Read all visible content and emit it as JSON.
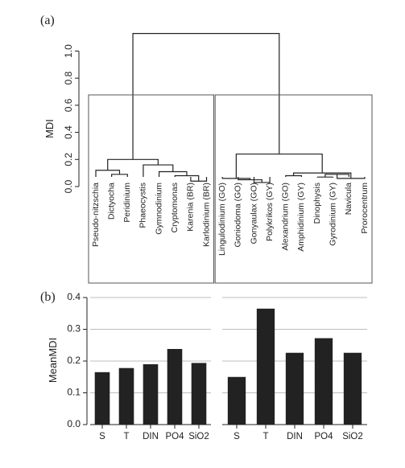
{
  "colors": {
    "ink": "#222222",
    "bar": "#222222",
    "grid": "#bdbdbd",
    "frame": "#555555",
    "background": "#ffffff"
  },
  "panel_a": {
    "label": "(a)",
    "ylabel": "MDI"
  },
  "panel_b": {
    "label": "(b)",
    "ylabel": "MeanMDI"
  },
  "chart_data": [
    {
      "type": "dendrogram",
      "panel": "(a)",
      "ylabel": "MDI",
      "ylim": [
        0,
        1.2
      ],
      "yticks": [
        "0.0",
        "0.2",
        "0.4",
        "0.6",
        "0.8",
        "1.0"
      ],
      "grid": false,
      "leaves": [
        "Pseudo-nitzschia",
        "Dictyocha",
        "Peridinium",
        "Phaeocystis",
        "Gymnodinium",
        "Cryptomonas",
        "Karenia (BR)",
        "Karlodinium (BR)",
        "Lingulodinium (GO)",
        "Goniodoma (GO)",
        "Gonyaulax (GO)",
        "Polykrikos (GY)",
        "Alexandrium (GO)",
        "Amphidinium (GY)",
        "Dinophysis",
        "Gyrodinium (GY)",
        "Navicula",
        "Prorocentrum"
      ],
      "merges": [
        {
          "left": "L6",
          "right": "L7",
          "height": 0.04
        },
        {
          "left": "L5",
          "right": "m0",
          "height": 0.08
        },
        {
          "left": "L4",
          "right": "m1",
          "height": 0.11
        },
        {
          "left": "L3",
          "right": "m2",
          "height": 0.16
        },
        {
          "left": "L1",
          "right": "L2",
          "height": 0.09
        },
        {
          "left": "L0",
          "right": "m4",
          "height": 0.12
        },
        {
          "left": "m5",
          "right": "m3",
          "height": 0.2
        },
        {
          "left": "L10",
          "right": "L11",
          "height": 0.03
        },
        {
          "left": "L9",
          "right": "m7",
          "height": 0.05
        },
        {
          "left": "L8",
          "right": "m8",
          "height": 0.06
        },
        {
          "left": "L12",
          "right": "L13",
          "height": 0.08
        },
        {
          "left": "L14",
          "right": "L15",
          "height": 0.07
        },
        {
          "left": "m11",
          "right": "L16",
          "height": 0.09
        },
        {
          "left": "m12",
          "right": "L17",
          "height": 0.06
        },
        {
          "left": "m10",
          "right": "m13",
          "height": 0.1
        },
        {
          "left": "m9",
          "right": "m14",
          "height": 0.24
        },
        {
          "left": "m6",
          "right": "m15",
          "height": 1.13
        }
      ],
      "cluster_boxes": [
        {
          "from_leaf": 0,
          "to_leaf": 7
        },
        {
          "from_leaf": 8,
          "to_leaf": 17
        }
      ]
    },
    {
      "type": "bar",
      "panel": "(b)",
      "ylabel": "MeanMDI",
      "ylim": [
        0,
        0.4
      ],
      "yticks": [
        "0.0",
        "0.1",
        "0.2",
        "0.3",
        "0.4"
      ],
      "grid": true,
      "categories": [
        "S",
        "T",
        "DIN",
        "PO4",
        "SiO2"
      ],
      "groups": [
        {
          "values": [
            0.165,
            0.178,
            0.19,
            0.238,
            0.194
          ]
        },
        {
          "values": [
            0.15,
            0.365,
            0.226,
            0.272,
            0.226
          ]
        }
      ]
    }
  ]
}
